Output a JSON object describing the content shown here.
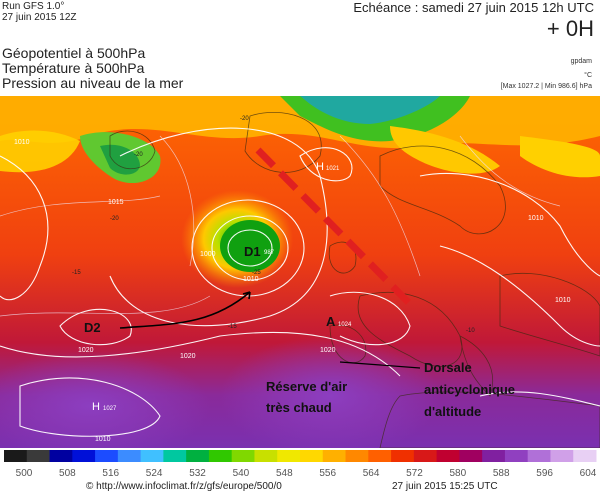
{
  "header": {
    "run": "Run GFS 1.0°",
    "run_date": "27 juin 2015 12Z",
    "echeance": "Echéance : samedi 27 juin 2015 12h UTC",
    "offset": "+ 0H",
    "credit": "gpdam",
    "unit_c": "°C",
    "max_min": "[Max 1027.2 | Min 986.6] hPa"
  },
  "titles": {
    "line1": "Géopotentiel à 500hPa",
    "line2": "Température à 500hPa",
    "line3": "Pression au niveau de la mer"
  },
  "map": {
    "centers": {
      "d1": "D1",
      "d1_val": "987",
      "d2": "D2",
      "a": "A",
      "a_val": "1024",
      "h1": "H",
      "h1_val": "1021",
      "h2": "H",
      "h2_val": "1027"
    },
    "isobar_labels": [
      "1010",
      "1015",
      "1000",
      "1010",
      "1020",
      "1020",
      "1010",
      "1010",
      "1010",
      "1020"
    ],
    "temp_labels": [
      "-20",
      "-20",
      "-15",
      "-20",
      "-25",
      "-15",
      "-10"
    ],
    "annotations": {
      "reserve_line1": "Réserve d'air",
      "reserve_line2": "très chaud",
      "dorsale_line1": "Dorsale",
      "dorsale_line2": "anticyclonique",
      "dorsale_line3": "d'altitude"
    }
  },
  "legend": {
    "ticks": [
      "500",
      "508",
      "516",
      "524",
      "532",
      "540",
      "548",
      "556",
      "564",
      "572",
      "580",
      "588",
      "596",
      "604"
    ],
    "colors": [
      "#1a1a1a",
      "#3a3a3a",
      "#0000a0",
      "#0010d8",
      "#1c4cff",
      "#3c8cff",
      "#40c0ff",
      "#00c8a0",
      "#00b040",
      "#30c800",
      "#80d800",
      "#c8e000",
      "#f0e800",
      "#ffd800",
      "#ffb000",
      "#ff8800",
      "#ff6000",
      "#f03000",
      "#d81818",
      "#c00030",
      "#a00060",
      "#8020a0",
      "#9040c0",
      "#b070d8",
      "#d0a0e8",
      "#e8d0f4"
    ]
  },
  "footer": {
    "url": "© http://www.infoclimat.fr/z/gfs/europe/500/0",
    "timestamp": "27 juin 2015 15:25 UTC"
  }
}
